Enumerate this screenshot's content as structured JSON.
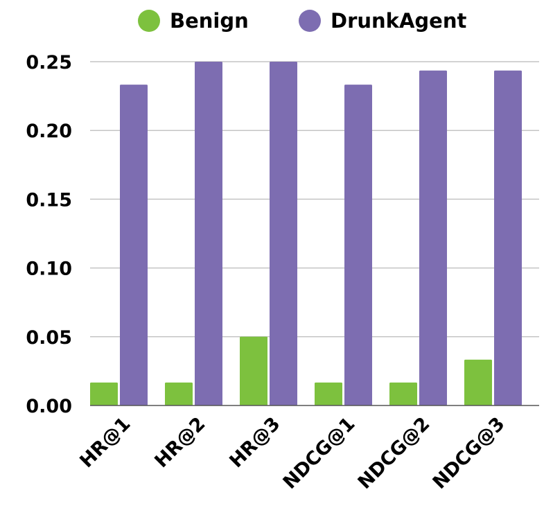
{
  "chart_data": {
    "type": "bar",
    "title": "",
    "xlabel": "",
    "ylabel": "",
    "categories": [
      "HR@1",
      "HR@2",
      "HR@3",
      "NDCG@1",
      "NDCG@2",
      "NDCG@3"
    ],
    "series": [
      {
        "name": "Benign",
        "color": "#7dc13e",
        "values": [
          0.0167,
          0.0167,
          0.05,
          0.0167,
          0.0167,
          0.0333
        ]
      },
      {
        "name": "DrunkAgent",
        "color": "#7d6db1",
        "values": [
          0.2333,
          0.25,
          0.25,
          0.2333,
          0.2436,
          0.2436
        ]
      }
    ],
    "ylim": [
      0,
      0.25
    ],
    "yticks": [
      "0.00",
      "0.05",
      "0.10",
      "0.15",
      "0.20",
      "0.25"
    ],
    "grid": true,
    "legend_position": "top-center"
  }
}
